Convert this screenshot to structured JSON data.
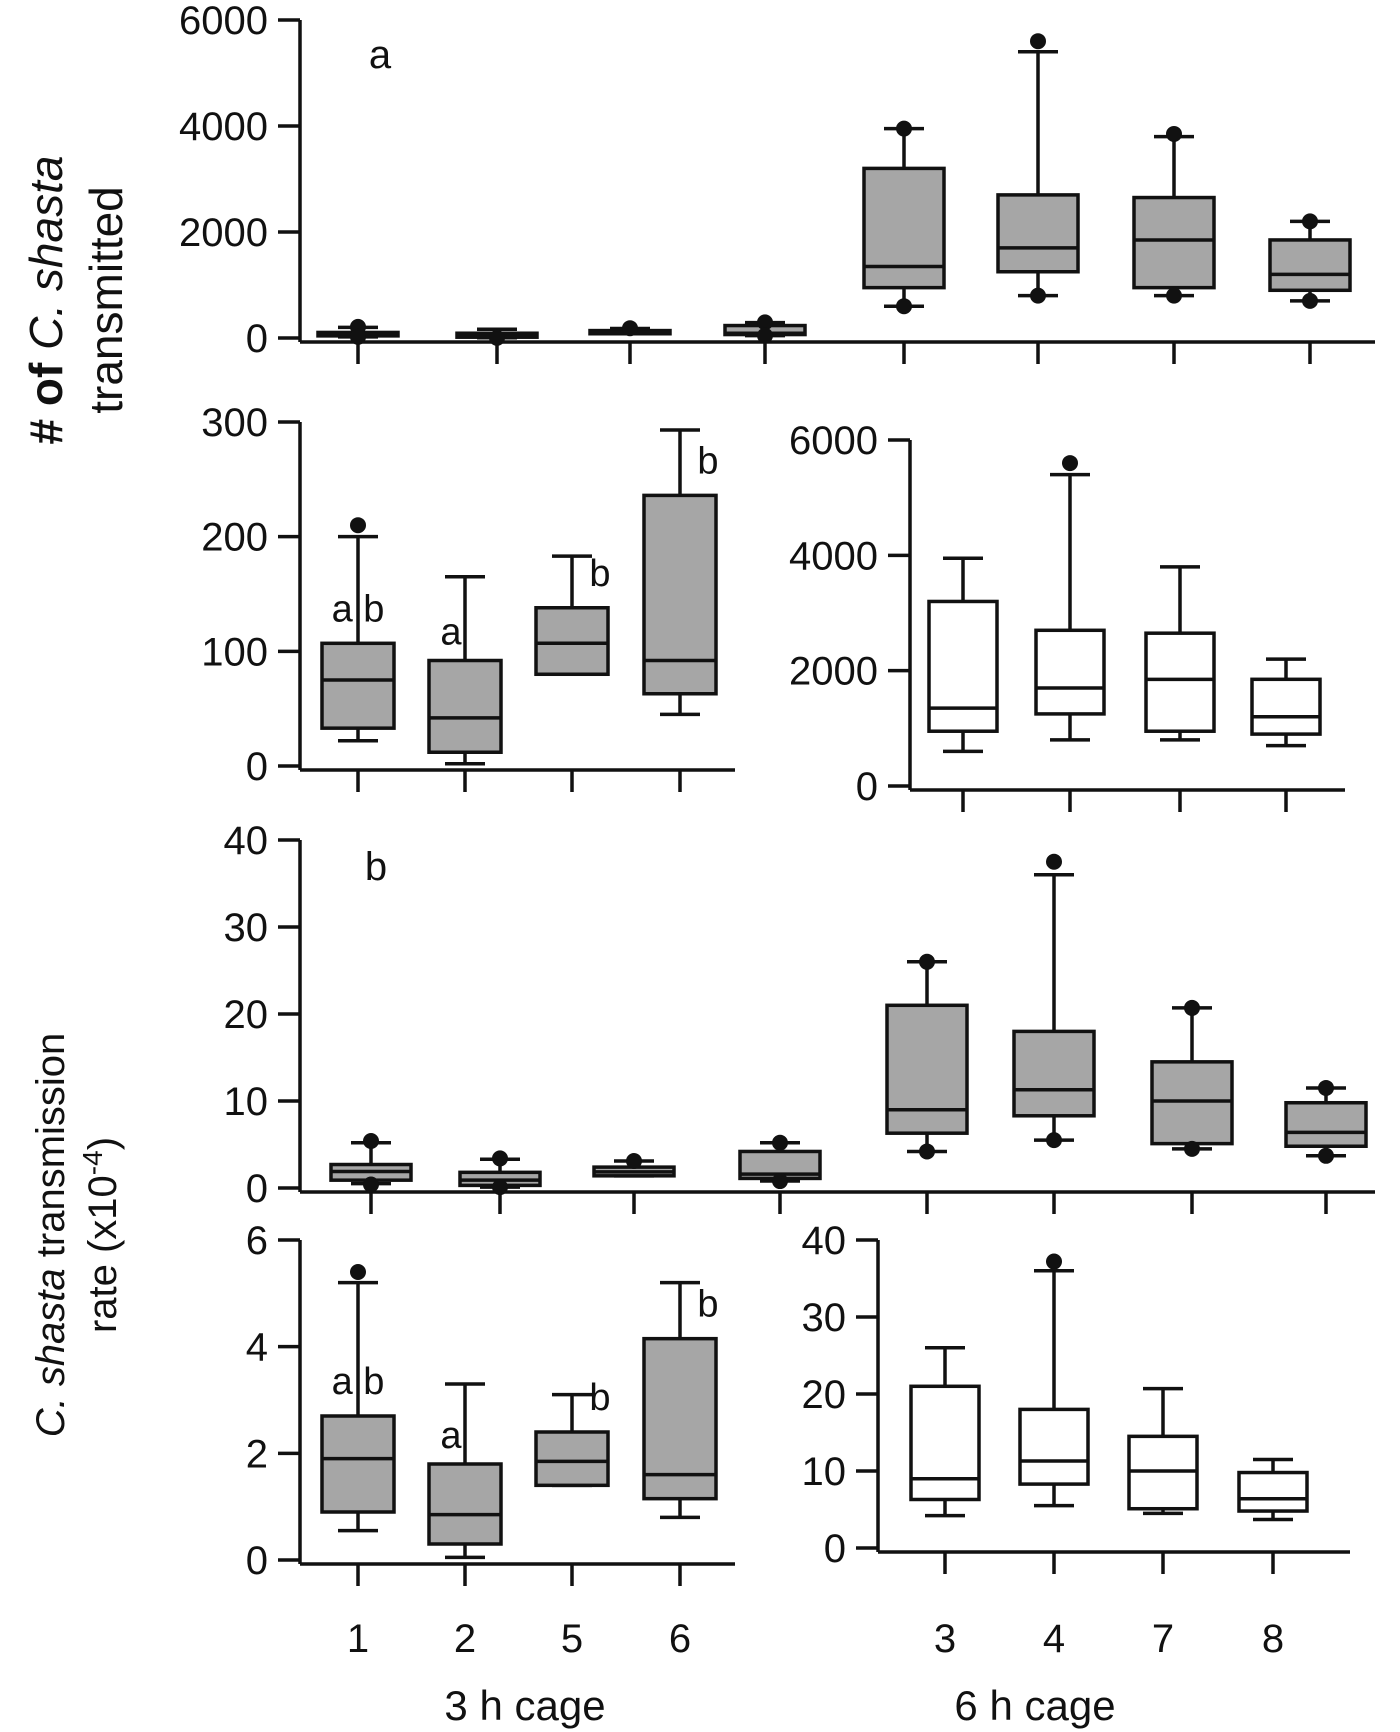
{
  "figure": {
    "ylabel_a_line1_prefix": "# of ",
    "ylabel_a_line1_italic": "C. shasta",
    "ylabel_a_line2": "transmitted",
    "ylabel_b_line1_italic": "C. shasta",
    "ylabel_b_line1_suffix": " transmission",
    "ylabel_b_line2": "rate (x10",
    "ylabel_b_line2_exp": "-4",
    "ylabel_b_line2_end": ")",
    "x_categories_3h": [
      "1",
      "2",
      "5",
      "6"
    ],
    "x_categories_6h": [
      "3",
      "4",
      "7",
      "8"
    ],
    "group_3h": "3 h cage",
    "group_6h": "6 h cage"
  },
  "colors": {
    "gray_box": "#a6a6a6",
    "white_box": "#ffffff",
    "ink": "#111111"
  },
  "chart_data": [
    {
      "id": "a-all",
      "type": "box",
      "panel_tag": "a",
      "categories": [
        "1",
        "2",
        "5",
        "6",
        "3",
        "4",
        "7",
        "8"
      ],
      "ylim": [
        0,
        6000
      ],
      "yticks": [
        "0",
        "2000",
        "4000",
        "6000"
      ],
      "fill": "gray",
      "boxes": [
        {
          "q1": 40,
          "med": 75,
          "q3": 105,
          "wlo": 22,
          "whi": 200,
          "out": [
            210,
            22
          ]
        },
        {
          "q1": 15,
          "med": 42,
          "q3": 90,
          "wlo": 5,
          "whi": 165,
          "out": [
            3
          ]
        },
        {
          "q1": 80,
          "med": 105,
          "q3": 140,
          "wlo": 80,
          "whi": 180,
          "out": [
            185
          ]
        },
        {
          "q1": 65,
          "med": 90,
          "q3": 235,
          "wlo": 45,
          "whi": 290,
          "out": [
            295,
            45
          ]
        },
        {
          "q1": 950,
          "med": 1350,
          "q3": 3200,
          "wlo": 600,
          "whi": 3950,
          "out": [
            3950,
            600
          ]
        },
        {
          "q1": 1250,
          "med": 1700,
          "q3": 2700,
          "wlo": 800,
          "whi": 5400,
          "out": [
            5600,
            800
          ]
        },
        {
          "q1": 950,
          "med": 1850,
          "q3": 2650,
          "wlo": 800,
          "whi": 3800,
          "out": [
            3850,
            800
          ]
        },
        {
          "q1": 900,
          "med": 1200,
          "q3": 1850,
          "wlo": 700,
          "whi": 2200,
          "out": [
            2200,
            700
          ]
        }
      ]
    },
    {
      "id": "a-3h",
      "type": "box",
      "categories": [
        "1",
        "2",
        "5",
        "6"
      ],
      "ylim": [
        0,
        300
      ],
      "yticks": [
        "0",
        "100",
        "200",
        "300"
      ],
      "fill": "gray",
      "letters": [
        "a b",
        "a",
        "b",
        "b"
      ],
      "boxes": [
        {
          "q1": 33,
          "med": 75,
          "q3": 107,
          "wlo": 22,
          "whi": 200,
          "out": [
            210
          ]
        },
        {
          "q1": 12,
          "med": 42,
          "q3": 92,
          "wlo": 2,
          "whi": 165,
          "out": []
        },
        {
          "q1": 80,
          "med": 107,
          "q3": 138,
          "wlo": 80,
          "whi": 183,
          "out": []
        },
        {
          "q1": 63,
          "med": 92,
          "q3": 236,
          "wlo": 45,
          "whi": 293,
          "out": []
        }
      ]
    },
    {
      "id": "a-6h",
      "type": "box",
      "categories": [
        "3",
        "4",
        "7",
        "8"
      ],
      "ylim": [
        0,
        6000
      ],
      "yticks": [
        "0",
        "2000",
        "4000",
        "6000"
      ],
      "fill": "white",
      "boxes": [
        {
          "q1": 950,
          "med": 1350,
          "q3": 3200,
          "wlo": 600,
          "whi": 3950,
          "out": []
        },
        {
          "q1": 1250,
          "med": 1700,
          "q3": 2700,
          "wlo": 800,
          "whi": 5400,
          "out": [
            5600
          ]
        },
        {
          "q1": 950,
          "med": 1850,
          "q3": 2650,
          "wlo": 800,
          "whi": 3800,
          "out": []
        },
        {
          "q1": 900,
          "med": 1200,
          "q3": 1850,
          "wlo": 700,
          "whi": 2200,
          "out": []
        }
      ]
    },
    {
      "id": "b-all",
      "type": "box",
      "panel_tag": "b",
      "categories": [
        "1",
        "2",
        "5",
        "6",
        "3",
        "4",
        "7",
        "8"
      ],
      "ylim": [
        0,
        40
      ],
      "yticks": [
        "0",
        "10",
        "20",
        "30",
        "40"
      ],
      "fill": "gray",
      "boxes": [
        {
          "q1": 0.9,
          "med": 1.9,
          "q3": 2.7,
          "wlo": 0.5,
          "whi": 5.2,
          "out": [
            5.4,
            0.4
          ]
        },
        {
          "q1": 0.3,
          "med": 0.9,
          "q3": 1.8,
          "wlo": 0.1,
          "whi": 3.3,
          "out": [
            3.4,
            0.1
          ]
        },
        {
          "q1": 1.4,
          "med": 1.85,
          "q3": 2.4,
          "wlo": 1.4,
          "whi": 3.1,
          "out": [
            3.1
          ]
        },
        {
          "q1": 1.1,
          "med": 1.6,
          "q3": 4.2,
          "wlo": 0.8,
          "whi": 5.2,
          "out": [
            5.2,
            0.8
          ]
        },
        {
          "q1": 6.3,
          "med": 9.0,
          "q3": 21,
          "wlo": 4.2,
          "whi": 26,
          "out": [
            26,
            4.2
          ]
        },
        {
          "q1": 8.3,
          "med": 11.3,
          "q3": 18,
          "wlo": 5.5,
          "whi": 36,
          "out": [
            37.5,
            5.5
          ]
        },
        {
          "q1": 5.1,
          "med": 10,
          "q3": 14.5,
          "wlo": 4.5,
          "whi": 20.7,
          "out": [
            20.7,
            4.5
          ]
        },
        {
          "q1": 4.8,
          "med": 6.4,
          "q3": 9.8,
          "wlo": 3.7,
          "whi": 11.5,
          "out": [
            11.5,
            3.7
          ]
        }
      ]
    },
    {
      "id": "b-3h",
      "type": "box",
      "categories": [
        "1",
        "2",
        "5",
        "6"
      ],
      "ylim": [
        0,
        6
      ],
      "yticks": [
        "0",
        "2",
        "4",
        "6"
      ],
      "fill": "gray",
      "letters": [
        "a b",
        "a",
        "b",
        "b"
      ],
      "boxes": [
        {
          "q1": 0.9,
          "med": 1.9,
          "q3": 2.7,
          "wlo": 0.55,
          "whi": 5.2,
          "out": [
            5.4
          ]
        },
        {
          "q1": 0.3,
          "med": 0.85,
          "q3": 1.8,
          "wlo": 0.05,
          "whi": 3.3,
          "out": []
        },
        {
          "q1": 1.4,
          "med": 1.85,
          "q3": 2.4,
          "wlo": 1.4,
          "whi": 3.1,
          "out": []
        },
        {
          "q1": 1.15,
          "med": 1.6,
          "q3": 4.15,
          "wlo": 0.8,
          "whi": 5.2,
          "out": []
        }
      ]
    },
    {
      "id": "b-6h",
      "type": "box",
      "categories": [
        "3",
        "4",
        "7",
        "8"
      ],
      "ylim": [
        0,
        40
      ],
      "yticks": [
        "0",
        "10",
        "20",
        "30",
        "40"
      ],
      "fill": "white",
      "boxes": [
        {
          "q1": 6.3,
          "med": 9.0,
          "q3": 21,
          "wlo": 4.2,
          "whi": 26,
          "out": []
        },
        {
          "q1": 8.3,
          "med": 11.3,
          "q3": 18,
          "wlo": 5.5,
          "whi": 36,
          "out": [
            37.2
          ]
        },
        {
          "q1": 5.1,
          "med": 10,
          "q3": 14.5,
          "wlo": 4.5,
          "whi": 20.7,
          "out": []
        },
        {
          "q1": 4.8,
          "med": 6.4,
          "q3": 9.8,
          "wlo": 3.7,
          "whi": 11.5,
          "out": []
        }
      ]
    }
  ]
}
